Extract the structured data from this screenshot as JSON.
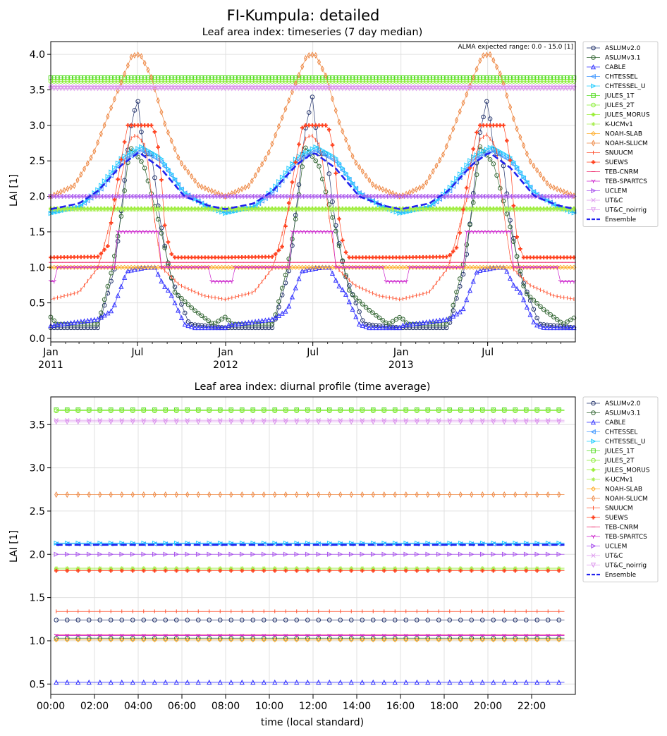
{
  "suptitle": "FI-Kumpula: detailed",
  "chart_data": [
    {
      "type": "line",
      "title": "Leaf area index: timeseries (7 day median)",
      "ylabel": "LAI [1]",
      "ylim": [
        -0.05,
        4.18
      ],
      "yticks": [
        0.0,
        0.5,
        1.0,
        1.5,
        2.0,
        2.5,
        3.0,
        3.5,
        4.0
      ],
      "xlim": [
        "2011-01-01",
        "2013-12-31"
      ],
      "xticks": [
        {
          "date": "2011-01-01",
          "label": "Jan",
          "sub": "2011"
        },
        {
          "date": "2011-07-01",
          "label": "Jul",
          "sub": ""
        },
        {
          "date": "2012-01-01",
          "label": "Jan",
          "sub": "2012"
        },
        {
          "date": "2012-07-01",
          "label": "Jul",
          "sub": ""
        },
        {
          "date": "2013-01-01",
          "label": "Jan",
          "sub": "2013"
        },
        {
          "date": "2013-07-01",
          "label": "Jul",
          "sub": ""
        }
      ],
      "grid": true,
      "legend": "outside-right",
      "annotation": "ALMA expected range: 0.0 - 15.0 [1]",
      "series": [
        {
          "name": "ASLUMv2.0",
          "color": "#25356d",
          "marker": "o",
          "profile": [
            [
              1,
              0.15
            ],
            [
              100,
              0.15
            ],
            [
              135,
              1.0
            ],
            [
              166,
              2.9
            ],
            [
              182,
              3.4
            ],
            [
              195,
              2.6
            ],
            [
              212,
              2.6
            ],
            [
              228,
              1.7
            ],
            [
              250,
              0.9
            ],
            [
              290,
              0.2
            ],
            [
              365,
              0.15
            ]
          ]
        },
        {
          "name": "ASLUMv3.1",
          "color": "#336633",
          "marker": "o",
          "profile": [
            [
              1,
              0.3
            ],
            [
              15,
              0.2
            ],
            [
              100,
              0.2
            ],
            [
              130,
              1.0
            ],
            [
              150,
              1.8
            ],
            [
              166,
              2.7
            ],
            [
              195,
              2.45
            ],
            [
              228,
              1.6
            ],
            [
              260,
              0.65
            ],
            [
              300,
              0.4
            ],
            [
              340,
              0.2
            ],
            [
              365,
              0.3
            ]
          ]
        },
        {
          "name": "CABLE",
          "color": "#3333ff",
          "marker": "^",
          "profile": [
            [
              1,
              0.18
            ],
            [
              100,
              0.27
            ],
            [
              130,
              0.4
            ],
            [
              160,
              0.95
            ],
            [
              200,
              1.0
            ],
            [
              218,
              1.0
            ],
            [
              236,
              0.75
            ],
            [
              250,
              0.65
            ],
            [
              280,
              0.2
            ],
            [
              300,
              0.15
            ],
            [
              365,
              0.15
            ]
          ]
        },
        {
          "name": "CHTESSEL",
          "color": "#4499ff",
          "marker": "<",
          "profile": [
            [
              1,
              1.78
            ],
            [
              60,
              1.85
            ],
            [
              100,
              2.05
            ],
            [
              150,
              2.5
            ],
            [
              190,
              2.65
            ],
            [
              230,
              2.5
            ],
            [
              280,
              2.05
            ],
            [
              330,
              1.85
            ],
            [
              365,
              1.78
            ]
          ]
        },
        {
          "name": "CHTESSEL_U",
          "color": "#22ccff",
          "marker": ">",
          "profile": [
            [
              1,
              1.76
            ],
            [
              60,
              1.85
            ],
            [
              100,
              2.1
            ],
            [
              150,
              2.55
            ],
            [
              190,
              2.7
            ],
            [
              230,
              2.55
            ],
            [
              280,
              2.05
            ],
            [
              330,
              1.85
            ],
            [
              365,
              1.76
            ]
          ]
        },
        {
          "name": "JULES_1T",
          "color": "#55dd22",
          "marker": "s",
          "profile": [
            [
              1,
              3.67
            ],
            [
              365,
              3.67
            ]
          ]
        },
        {
          "name": "JULES_2T",
          "color": "#88ee33",
          "marker": "o",
          "profile": [
            [
              1,
              3.62
            ],
            [
              365,
              3.62
            ]
          ]
        },
        {
          "name": "JULES_MORUS",
          "color": "#99ee33",
          "marker": "P",
          "profile": [
            [
              1,
              1.83
            ],
            [
              365,
              1.83
            ]
          ]
        },
        {
          "name": "K-UCMv1",
          "color": "#aaee55",
          "marker": "*",
          "profile": [
            [
              1,
              1.81
            ],
            [
              365,
              1.81
            ]
          ]
        },
        {
          "name": "NOAH-SLAB",
          "color": "#ffaa22",
          "marker": "D",
          "profile": [
            [
              1,
              1.0
            ],
            [
              365,
              1.0
            ]
          ]
        },
        {
          "name": "NOAH-SLUCM",
          "color": "#ee8844",
          "marker": "d",
          "profile": [
            [
              1,
              2.0
            ],
            [
              50,
              2.15
            ],
            [
              90,
              2.6
            ],
            [
              130,
              3.3
            ],
            [
              170,
              3.98
            ],
            [
              188,
              4.0
            ],
            [
              210,
              3.7
            ],
            [
              240,
              3.0
            ],
            [
              270,
              2.5
            ],
            [
              310,
              2.15
            ],
            [
              365,
              2.0
            ]
          ]
        },
        {
          "name": "SNUUCM",
          "color": "#ff5533",
          "marker": "|",
          "profile": [
            [
              1,
              0.55
            ],
            [
              60,
              0.65
            ],
            [
              100,
              1.0
            ],
            [
              140,
              2.0
            ],
            [
              165,
              2.8
            ],
            [
              180,
              2.87
            ],
            [
              200,
              2.7
            ],
            [
              215,
              1.8
            ],
            [
              232,
              1.0
            ],
            [
              270,
              0.75
            ],
            [
              320,
              0.6
            ],
            [
              365,
              0.55
            ]
          ]
        },
        {
          "name": "SUEWS",
          "color": "#ff4422",
          "marker": "P",
          "profile": [
            [
              1,
              1.14
            ],
            [
              100,
              1.15
            ],
            [
              120,
              1.3
            ],
            [
              135,
              2.0
            ],
            [
              150,
              2.6
            ],
            [
              162,
              3.0
            ],
            [
              215,
              3.0
            ],
            [
              228,
              2.6
            ],
            [
              240,
              1.5
            ],
            [
              255,
              1.14
            ],
            [
              365,
              1.14
            ]
          ]
        },
        {
          "name": "TEB-CNRM",
          "color": "#ee2266",
          "marker": "_",
          "profile": [
            [
              1,
              1.07
            ],
            [
              365,
              1.07
            ]
          ]
        },
        {
          "name": "TEB-SPARTCS",
          "color": "#cc22cc",
          "marker": "1",
          "profile": [
            [
              1,
              0.8
            ],
            [
              14,
              0.8
            ],
            [
              15,
              1.0
            ],
            [
              136,
              1.0
            ],
            [
              137,
              1.5
            ],
            [
              230,
              1.5
            ],
            [
              231,
              1.0
            ],
            [
              330,
              1.0
            ],
            [
              331,
              0.8
            ],
            [
              365,
              0.8
            ]
          ]
        },
        {
          "name": "UCLEM",
          "color": "#aa55ee",
          "marker": ">",
          "profile": [
            [
              1,
              2.0
            ],
            [
              365,
              2.0
            ]
          ]
        },
        {
          "name": "UT&C",
          "color": "#dd99ee",
          "marker": "x",
          "profile": [
            [
              1,
              3.55
            ],
            [
              365,
              3.55
            ]
          ]
        },
        {
          "name": "UT&C_noirrig",
          "color": "#dd99ee",
          "marker": "v",
          "profile": [
            [
              1,
              3.52
            ],
            [
              365,
              3.52
            ]
          ]
        },
        {
          "name": "Ensemble",
          "color": "#2222ee",
          "marker": "none",
          "dashed": true,
          "profile": [
            [
              1,
              1.82
            ],
            [
              60,
              1.9
            ],
            [
              100,
              2.08
            ],
            [
              150,
              2.45
            ],
            [
              185,
              2.62
            ],
            [
              230,
              2.4
            ],
            [
              280,
              2.0
            ],
            [
              330,
              1.87
            ],
            [
              365,
              1.82
            ]
          ]
        }
      ]
    },
    {
      "type": "line",
      "title": "Leaf area index: diurnal profile (time average)",
      "ylabel": "LAI [1]",
      "xlabel": "time (local standard)",
      "ylim": [
        0.38,
        3.82
      ],
      "yticks": [
        0.5,
        1.0,
        1.5,
        2.0,
        2.5,
        3.0,
        3.5
      ],
      "xlim": [
        0,
        24
      ],
      "xticks": [
        {
          "value": 0,
          "label": "00:00"
        },
        {
          "value": 2,
          "label": "02:00"
        },
        {
          "value": 4,
          "label": "04:00"
        },
        {
          "value": 6,
          "label": "06:00"
        },
        {
          "value": 8,
          "label": "08:00"
        },
        {
          "value": 10,
          "label": "10:00"
        },
        {
          "value": 12,
          "label": "12:00"
        },
        {
          "value": 14,
          "label": "14:00"
        },
        {
          "value": 16,
          "label": "16:00"
        },
        {
          "value": 18,
          "label": "18:00"
        },
        {
          "value": 20,
          "label": "20:00"
        },
        {
          "value": 22,
          "label": "22:00"
        }
      ],
      "grid": true,
      "legend": "outside-right",
      "series": [
        {
          "name": "ASLUMv2.0",
          "color": "#25356d",
          "marker": "o",
          "value": 1.24
        },
        {
          "name": "ASLUMv3.1",
          "color": "#336633",
          "marker": "o",
          "value": 1.03
        },
        {
          "name": "CABLE",
          "color": "#3333ff",
          "marker": "^",
          "value": 0.52
        },
        {
          "name": "CHTESSEL",
          "color": "#4499ff",
          "marker": "<",
          "value": 2.12
        },
        {
          "name": "CHTESSEL_U",
          "color": "#22ccff",
          "marker": ">",
          "value": 2.13
        },
        {
          "name": "JULES_1T",
          "color": "#55dd22",
          "marker": "s",
          "value": 3.67
        },
        {
          "name": "JULES_2T",
          "color": "#88ee33",
          "marker": "o",
          "value": 3.66
        },
        {
          "name": "JULES_MORUS",
          "color": "#99ee33",
          "marker": "P",
          "value": 1.83
        },
        {
          "name": "K-UCMv1",
          "color": "#aaee55",
          "marker": "*",
          "value": 1.84
        },
        {
          "name": "NOAH-SLAB",
          "color": "#ffaa22",
          "marker": "D",
          "value": 1.01
        },
        {
          "name": "NOAH-SLUCM",
          "color": "#ee8844",
          "marker": "d",
          "value": 2.69
        },
        {
          "name": "SNUUCM",
          "color": "#ff5533",
          "marker": "|",
          "value": 1.34
        },
        {
          "name": "SUEWS",
          "color": "#ff4422",
          "marker": "P",
          "value": 1.81
        },
        {
          "name": "TEB-CNRM",
          "color": "#ee2266",
          "marker": "_",
          "value": 1.07
        },
        {
          "name": "TEB-SPARTCS",
          "color": "#cc22cc",
          "marker": "1",
          "value": 1.06
        },
        {
          "name": "UCLEM",
          "color": "#aa55ee",
          "marker": ">",
          "value": 2.0
        },
        {
          "name": "UT&C",
          "color": "#dd99ee",
          "marker": "x",
          "value": 3.55
        },
        {
          "name": "UT&C_noirrig",
          "color": "#dd99ee",
          "marker": "v",
          "value": 3.53
        },
        {
          "name": "Ensemble",
          "color": "#2222ee",
          "marker": "none",
          "dashed": true,
          "value": 2.11
        }
      ]
    }
  ]
}
